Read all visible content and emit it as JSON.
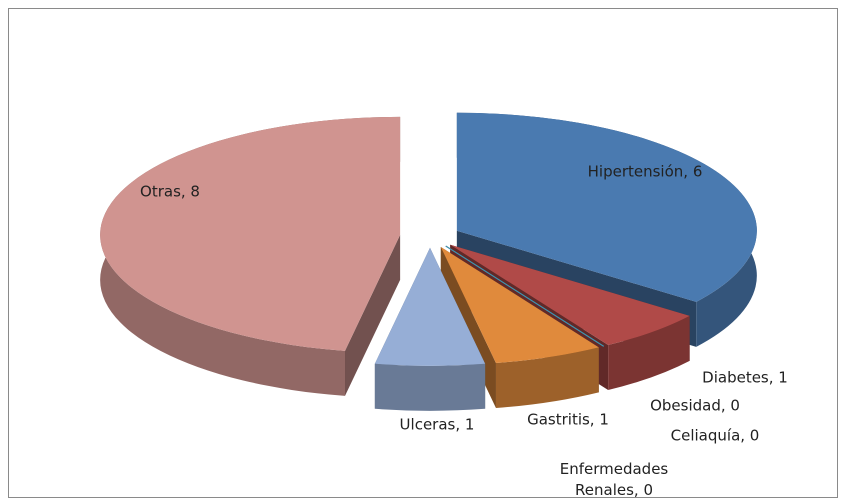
{
  "chart_data": {
    "type": "pie",
    "values": [
      6,
      1,
      0,
      0,
      0,
      1,
      1,
      8
    ],
    "value_labels": [
      "Hipertensión, 6",
      "Diabetes, 1",
      "Obesidad, 0",
      "Celiaquía, 0",
      "Enfermedades Renales, 0",
      "Gastritis, 1",
      "Ulceras, 1",
      "Otras, 8"
    ],
    "colors": [
      "#4a7ab0",
      "#b04a48",
      "#2b6a7a",
      "#7a5fa0",
      "#3a9ab0",
      "#e08a3c",
      "#96aed6",
      "#d09490"
    ]
  }
}
